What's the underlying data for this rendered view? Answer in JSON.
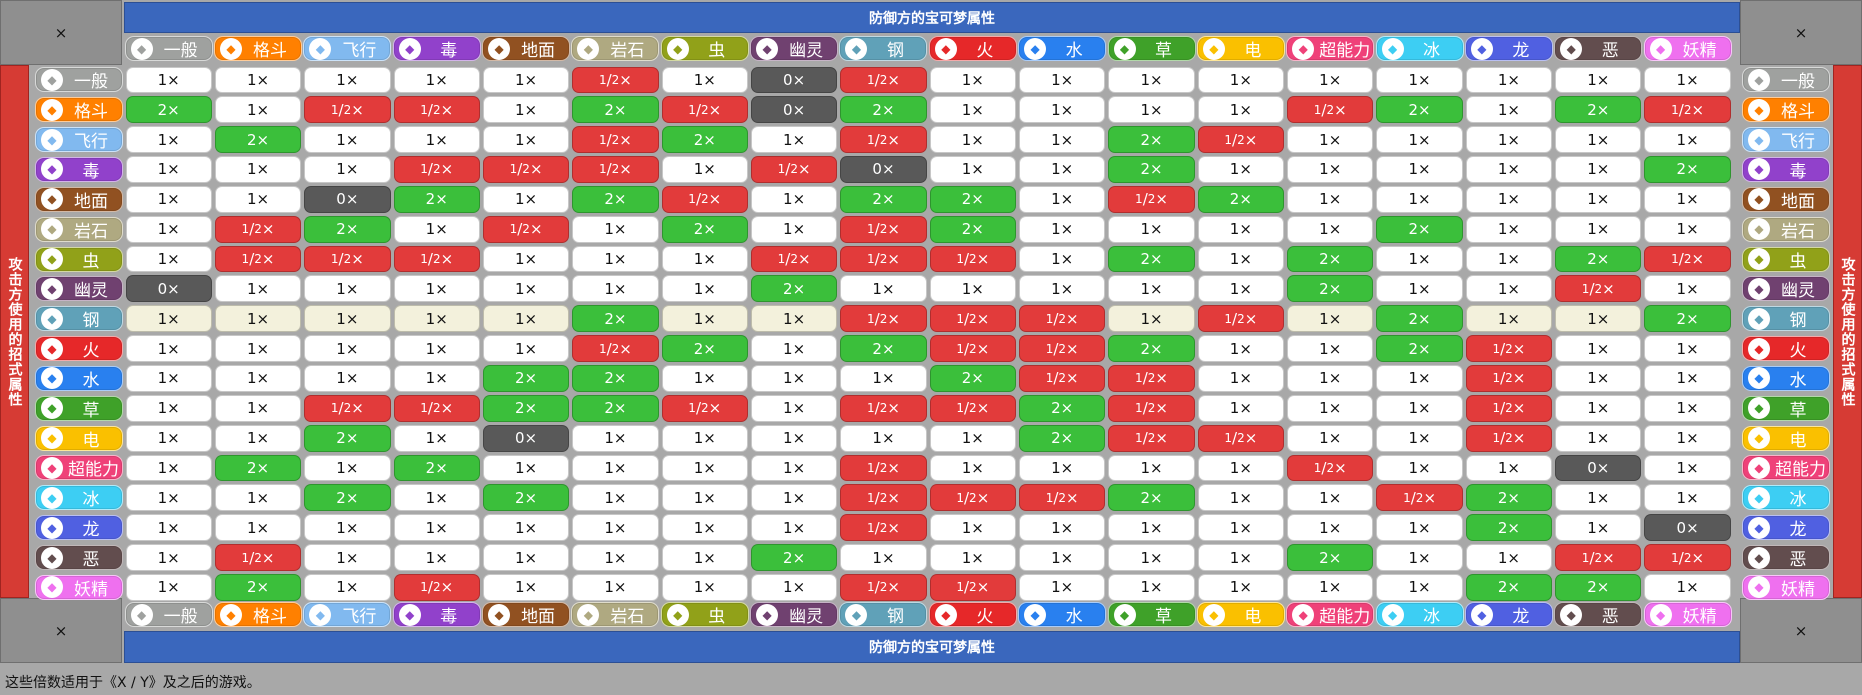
{
  "corner_mark": "×",
  "top_banner": "防御方的宝可梦属性",
  "bottom_banner": "防御方的宝可梦属性",
  "side_banner": "攻击方使用的招式属性",
  "footer": "这些倍数适用于《X / Y》及之后的游戏。",
  "types": [
    {
      "name": "一般",
      "color": "#9fa19f",
      "icon": "normal-icon"
    },
    {
      "name": "格斗",
      "color": "#ff8000",
      "icon": "fighting-icon"
    },
    {
      "name": "飞行",
      "color": "#81b9ef",
      "icon": "flying-icon"
    },
    {
      "name": "毒",
      "color": "#9141cb",
      "icon": "poison-icon"
    },
    {
      "name": "地面",
      "color": "#915121",
      "icon": "ground-icon"
    },
    {
      "name": "岩石",
      "color": "#afa981",
      "icon": "rock-icon"
    },
    {
      "name": "虫",
      "color": "#91a119",
      "icon": "bug-icon"
    },
    {
      "name": "幽灵",
      "color": "#704170",
      "icon": "ghost-icon"
    },
    {
      "name": "钢",
      "color": "#60a1b8",
      "icon": "steel-icon"
    },
    {
      "name": "火",
      "color": "#e62829",
      "icon": "fire-icon"
    },
    {
      "name": "水",
      "color": "#2980ef",
      "icon": "water-icon"
    },
    {
      "name": "草",
      "color": "#3fa129",
      "icon": "grass-icon"
    },
    {
      "name": "电",
      "color": "#fac000",
      "icon": "electric-icon"
    },
    {
      "name": "超能力",
      "color": "#ef4179",
      "icon": "psychic-icon"
    },
    {
      "name": "冰",
      "color": "#3dcef3",
      "icon": "ice-icon"
    },
    {
      "name": "龙",
      "color": "#5060e1",
      "icon": "dragon-icon"
    },
    {
      "name": "恶",
      "color": "#624d4e",
      "icon": "dark-icon"
    },
    {
      "name": "妖精",
      "color": "#ef70ef",
      "icon": "fairy-icon"
    }
  ],
  "effect_colors": {
    "2": "#3bbf3b",
    "1": "#ffffff",
    "0.5": "#e23b3b",
    "0": "#595959",
    "steel_row": "#f3f1dc"
  },
  "effect_labels": {
    "2": "2×",
    "1": "1×",
    "0": "0×"
  },
  "half_label": {
    "num": "1",
    "den": "2",
    "suffix": "×"
  },
  "matrix": [
    [
      1,
      1,
      1,
      1,
      1,
      0.5,
      1,
      0,
      0.5,
      1,
      1,
      1,
      1,
      1,
      1,
      1,
      1,
      1
    ],
    [
      2,
      1,
      0.5,
      0.5,
      1,
      2,
      0.5,
      0,
      2,
      1,
      1,
      1,
      1,
      0.5,
      2,
      1,
      2,
      0.5
    ],
    [
      1,
      2,
      1,
      1,
      1,
      0.5,
      2,
      1,
      0.5,
      1,
      1,
      2,
      0.5,
      1,
      1,
      1,
      1,
      1
    ],
    [
      1,
      1,
      1,
      0.5,
      0.5,
      0.5,
      1,
      0.5,
      0,
      1,
      1,
      2,
      1,
      1,
      1,
      1,
      1,
      2
    ],
    [
      1,
      1,
      0,
      2,
      1,
      2,
      0.5,
      1,
      2,
      2,
      1,
      0.5,
      2,
      1,
      1,
      1,
      1,
      1
    ],
    [
      1,
      0.5,
      2,
      1,
      0.5,
      1,
      2,
      1,
      0.5,
      2,
      1,
      1,
      1,
      1,
      2,
      1,
      1,
      1
    ],
    [
      1,
      0.5,
      0.5,
      0.5,
      1,
      1,
      1,
      0.5,
      0.5,
      0.5,
      1,
      2,
      1,
      2,
      1,
      1,
      2,
      0.5
    ],
    [
      0,
      1,
      1,
      1,
      1,
      1,
      1,
      2,
      1,
      1,
      1,
      1,
      1,
      2,
      1,
      1,
      0.5,
      1
    ],
    [
      1,
      1,
      1,
      1,
      1,
      2,
      1,
      1,
      0.5,
      0.5,
      0.5,
      1,
      0.5,
      1,
      2,
      1,
      1,
      2
    ],
    [
      1,
      1,
      1,
      1,
      1,
      0.5,
      2,
      1,
      2,
      0.5,
      0.5,
      2,
      1,
      1,
      2,
      0.5,
      1,
      1
    ],
    [
      1,
      1,
      1,
      1,
      2,
      2,
      1,
      1,
      1,
      2,
      0.5,
      0.5,
      1,
      1,
      1,
      0.5,
      1,
      1
    ],
    [
      1,
      1,
      0.5,
      0.5,
      2,
      2,
      0.5,
      1,
      0.5,
      0.5,
      2,
      0.5,
      1,
      1,
      1,
      0.5,
      1,
      1
    ],
    [
      1,
      1,
      2,
      1,
      0,
      1,
      1,
      1,
      1,
      1,
      2,
      0.5,
      0.5,
      1,
      1,
      0.5,
      1,
      1
    ],
    [
      1,
      2,
      1,
      2,
      1,
      1,
      1,
      1,
      0.5,
      1,
      1,
      1,
      1,
      0.5,
      1,
      1,
      0,
      1
    ],
    [
      1,
      1,
      2,
      1,
      2,
      1,
      1,
      1,
      0.5,
      0.5,
      0.5,
      2,
      1,
      1,
      0.5,
      2,
      1,
      1
    ],
    [
      1,
      1,
      1,
      1,
      1,
      1,
      1,
      1,
      0.5,
      1,
      1,
      1,
      1,
      1,
      1,
      2,
      1,
      0
    ],
    [
      1,
      0.5,
      1,
      1,
      1,
      1,
      1,
      2,
      1,
      1,
      1,
      1,
      1,
      2,
      1,
      1,
      0.5,
      0.5
    ],
    [
      1,
      2,
      1,
      0.5,
      1,
      1,
      1,
      1,
      0.5,
      0.5,
      1,
      1,
      1,
      1,
      1,
      2,
      2,
      1
    ]
  ]
}
